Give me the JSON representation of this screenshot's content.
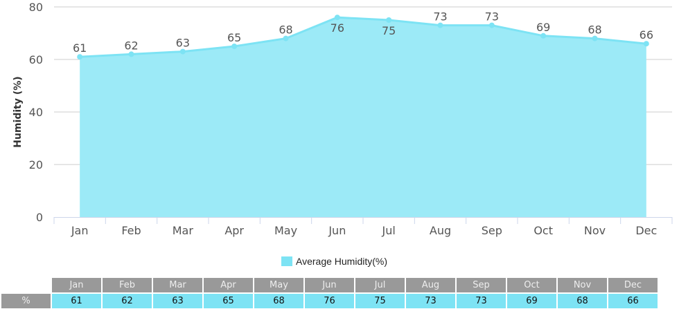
{
  "chart_data": {
    "type": "area",
    "categories": [
      "Jan",
      "Feb",
      "Mar",
      "Apr",
      "May",
      "Jun",
      "Jul",
      "Aug",
      "Sep",
      "Oct",
      "Nov",
      "Dec"
    ],
    "series": [
      {
        "name": "Average Humidity(%)",
        "values": [
          61,
          62,
          63,
          65,
          68,
          76,
          75,
          73,
          73,
          69,
          68,
          66
        ]
      }
    ],
    "ylabel": "Humidity (%)",
    "xlabel": "",
    "ylim": [
      0,
      80
    ],
    "yticks": [
      0,
      20,
      40,
      60,
      80
    ],
    "grid": true,
    "legend": "bottom-center",
    "colors": {
      "fill": "#9ceaf7",
      "line": "#7de3f4",
      "grid": "#ccc"
    }
  },
  "table": {
    "row_label": "%"
  }
}
